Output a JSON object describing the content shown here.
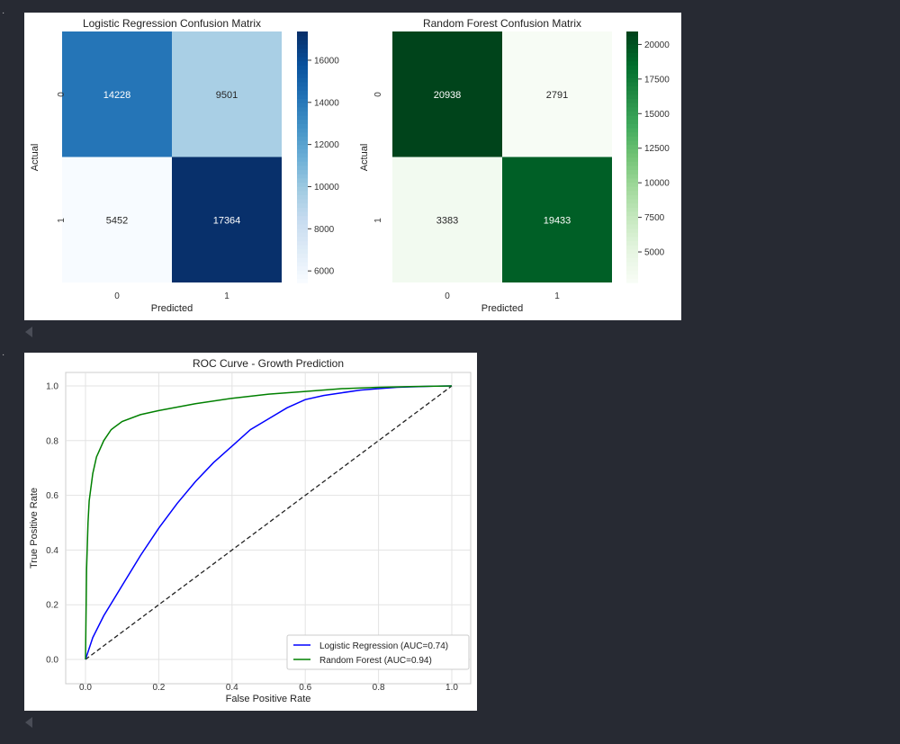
{
  "notebook": {
    "output_1_prompt": "·",
    "output_2_prompt": "·"
  },
  "chart_data": [
    {
      "type": "heatmap",
      "title": "Logistic Regression Confusion Matrix",
      "xlabel": "Predicted",
      "ylabel": "Actual",
      "x_ticks": [
        "0",
        "1"
      ],
      "y_ticks": [
        "0",
        "1"
      ],
      "values": [
        [
          14228,
          9501
        ],
        [
          5452,
          17364
        ]
      ],
      "colormap": "Blues",
      "colorbar_range": [
        5452,
        17364
      ],
      "colorbar_ticks": [
        6000,
        8000,
        10000,
        12000,
        14000,
        16000
      ],
      "colors": {
        "low": "#f7fbff",
        "high": "#08306b"
      }
    },
    {
      "type": "heatmap",
      "title": "Random Forest Confusion Matrix",
      "xlabel": "Predicted",
      "ylabel": "Actual",
      "x_ticks": [
        "0",
        "1"
      ],
      "y_ticks": [
        "0",
        "1"
      ],
      "values": [
        [
          20938,
          2791
        ],
        [
          3383,
          19433
        ]
      ],
      "colormap": "Greens",
      "colorbar_range": [
        2791,
        20938
      ],
      "colorbar_ticks": [
        5000,
        7500,
        10000,
        12500,
        15000,
        17500,
        20000
      ],
      "colors": {
        "low": "#f7fcf5",
        "high": "#00441b"
      }
    },
    {
      "type": "line",
      "title": "ROC Curve - Growth Prediction",
      "xlabel": "False Positive Rate",
      "ylabel": "True Positive Rate",
      "xlim": [
        0,
        1
      ],
      "ylim": [
        0,
        1
      ],
      "x_ticks": [
        "0.0",
        "0.2",
        "0.4",
        "0.6",
        "0.8",
        "1.0"
      ],
      "y_ticks": [
        "0.0",
        "0.2",
        "0.4",
        "0.6",
        "0.8",
        "1.0"
      ],
      "grid": true,
      "legend": "lower right",
      "series": [
        {
          "name": "Logistic Regression (AUC=0.74)",
          "color": "#0000ff",
          "x": [
            0,
            0.02,
            0.05,
            0.1,
            0.15,
            0.2,
            0.25,
            0.3,
            0.35,
            0.4,
            0.45,
            0.5,
            0.55,
            0.6,
            0.65,
            0.7,
            0.75,
            0.8,
            0.85,
            0.9,
            0.95,
            1.0
          ],
          "y": [
            0,
            0.08,
            0.16,
            0.27,
            0.38,
            0.48,
            0.57,
            0.65,
            0.72,
            0.78,
            0.84,
            0.88,
            0.92,
            0.95,
            0.965,
            0.975,
            0.985,
            0.99,
            0.995,
            0.997,
            0.999,
            1.0
          ]
        },
        {
          "name": "Random Forest (AUC=0.94)",
          "color": "#008000",
          "x": [
            0,
            0.003,
            0.007,
            0.01,
            0.02,
            0.03,
            0.05,
            0.07,
            0.1,
            0.15,
            0.2,
            0.3,
            0.4,
            0.5,
            0.6,
            0.7,
            0.8,
            0.9,
            1.0
          ],
          "y": [
            0,
            0.33,
            0.5,
            0.58,
            0.68,
            0.74,
            0.8,
            0.84,
            0.87,
            0.895,
            0.91,
            0.935,
            0.955,
            0.97,
            0.98,
            0.99,
            0.995,
            0.998,
            1.0
          ]
        },
        {
          "name": "",
          "color": "#222222",
          "dashed": true,
          "x": [
            0,
            1
          ],
          "y": [
            0,
            1
          ]
        }
      ]
    }
  ]
}
